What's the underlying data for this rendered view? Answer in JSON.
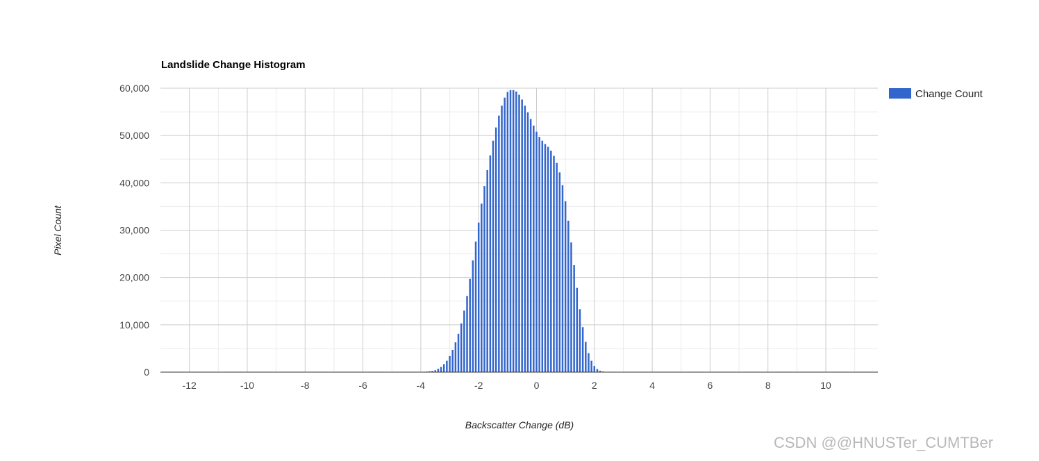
{
  "chart_data": {
    "type": "bar",
    "title": "Landslide Change Histogram",
    "xlabel": "Backscatter Change (dB)",
    "ylabel": "Pixel Count",
    "xlim": [
      -13,
      11.8
    ],
    "ylim": [
      0,
      60000
    ],
    "x_ticks": [
      -12,
      -10,
      -8,
      -6,
      -4,
      -2,
      0,
      2,
      4,
      6,
      8,
      10
    ],
    "x_tick_labels": [
      "-12",
      "-10",
      "-8",
      "-6",
      "-4",
      "-2",
      "0",
      "2",
      "4",
      "6",
      "8",
      "10"
    ],
    "y_ticks": [
      0,
      10000,
      20000,
      30000,
      40000,
      50000,
      60000
    ],
    "y_tick_labels": [
      "0",
      "10,000",
      "20,000",
      "30,000",
      "40,000",
      "50,000",
      "60,000"
    ],
    "grid": true,
    "legend_position": "right",
    "bar_width": 0.06,
    "series": [
      {
        "name": "Change Count",
        "color": "#3366cc",
        "x": [
          -4.0,
          -3.9,
          -3.8,
          -3.7,
          -3.6,
          -3.5,
          -3.4,
          -3.3,
          -3.2,
          -3.1,
          -3.0,
          -2.9,
          -2.8,
          -2.7,
          -2.6,
          -2.5,
          -2.4,
          -2.3,
          -2.2,
          -2.1,
          -2.0,
          -1.9,
          -1.8,
          -1.7,
          -1.6,
          -1.5,
          -1.4,
          -1.3,
          -1.2,
          -1.1,
          -1.0,
          -0.9,
          -0.8,
          -0.7,
          -0.6,
          -0.5,
          -0.4,
          -0.3,
          -0.2,
          -0.1,
          0.0,
          0.1,
          0.2,
          0.3,
          0.4,
          0.5,
          0.6,
          0.7,
          0.8,
          0.9,
          1.0,
          1.1,
          1.2,
          1.3,
          1.4,
          1.5,
          1.6,
          1.7,
          1.8,
          1.9,
          2.0,
          2.1,
          2.2,
          2.3,
          2.4,
          2.5,
          2.6,
          2.7,
          2.8,
          2.9,
          3.0,
          3.1,
          3.2,
          3.3,
          3.4,
          3.5,
          3.6,
          3.7,
          3.8,
          3.9,
          4.0
        ],
        "values": [
          50,
          80,
          120,
          180,
          250,
          400,
          700,
          1100,
          1700,
          2400,
          3400,
          4700,
          6300,
          8100,
          10300,
          13000,
          16100,
          19700,
          23600,
          27600,
          31600,
          35600,
          39300,
          42700,
          45800,
          48900,
          51700,
          54200,
          56300,
          58000,
          59200,
          59600,
          59600,
          59300,
          58600,
          57600,
          56300,
          54900,
          53500,
          52100,
          50800,
          49700,
          48900,
          48200,
          47600,
          46800,
          45700,
          44200,
          42200,
          39500,
          36100,
          32000,
          27400,
          22600,
          17800,
          13300,
          9500,
          6400,
          4000,
          2400,
          1300,
          650,
          300,
          130,
          60,
          30,
          20,
          20,
          20,
          20,
          20,
          20,
          20,
          20,
          20,
          20,
          20,
          20,
          20,
          20,
          20
        ]
      }
    ]
  },
  "watermark": "CSDN @@HNUSTer_CUMTBer"
}
